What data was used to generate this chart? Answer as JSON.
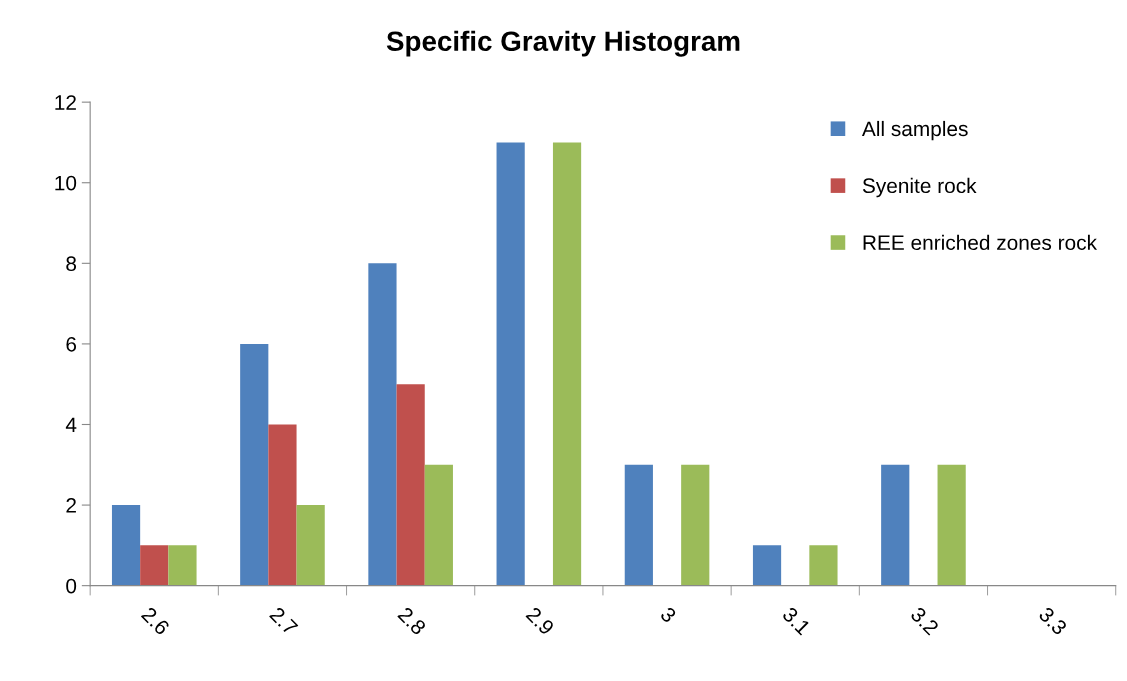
{
  "chart_data": {
    "type": "bar",
    "title": "Specific Gravity Histogram",
    "categories": [
      "2.6",
      "2.7",
      "2.8",
      "2.9",
      "3",
      "3.1",
      "3.2",
      "3.3"
    ],
    "series": [
      {
        "name": "All samples",
        "color": "#4f81bd",
        "values": [
          2,
          6,
          8,
          11,
          3,
          1,
          3,
          0
        ]
      },
      {
        "name": "Syenite rock",
        "color": "#c0504d",
        "values": [
          1,
          4,
          5,
          0,
          0,
          0,
          0,
          0
        ]
      },
      {
        "name": "REE enriched zones rock",
        "color": "#9bbb59",
        "values": [
          1,
          2,
          3,
          11,
          3,
          1,
          3,
          0
        ]
      }
    ],
    "ylim": [
      0,
      12
    ],
    "yticks": [
      0,
      2,
      4,
      6,
      8,
      10,
      12
    ],
    "grid": false,
    "legend": "top right"
  }
}
